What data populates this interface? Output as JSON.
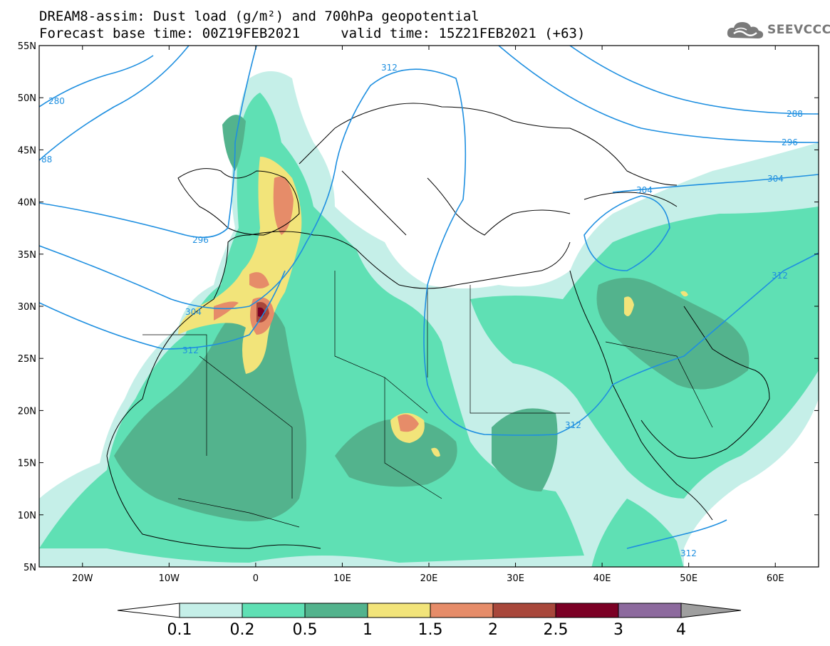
{
  "title": {
    "line1": "DREAM8-assim: Dust load (g/m²) and 700hPa geopotential",
    "line2": "Forecast base time: 00Z19FEB2021     valid time: 15Z21FEB2021 (+63)"
  },
  "brand": {
    "name": "SEEVCCC",
    "icon": "cloud-logo-icon"
  },
  "map": {
    "lon_range": [
      -25,
      65
    ],
    "lat_range": [
      5,
      55
    ],
    "lat_labels": [
      "55N",
      "50N",
      "45N",
      "40N",
      "35N",
      "30N",
      "25N",
      "20N",
      "15N",
      "10N",
      "5N"
    ],
    "lon_labels": [
      "20W",
      "10W",
      "0",
      "10E",
      "20E",
      "30E",
      "40E",
      "50E",
      "60E"
    ],
    "contour_labels": [
      "280",
      "88",
      "312",
      "288",
      "296",
      "304",
      "304",
      "296",
      "304",
      "312",
      "312",
      "312",
      "312"
    ],
    "contour_color": "#1e8fe0"
  },
  "colorbar": {
    "ticks": [
      "0.1",
      "0.2",
      "0.5",
      "1",
      "1.5",
      "2",
      "2.5",
      "3",
      "4"
    ],
    "colors": [
      "#c5efe8",
      "#5fe0b4",
      "#53b38d",
      "#f2e47a",
      "#e68c69",
      "#a8473b",
      "#7b0025",
      "#8d6a9e",
      "#9f9f9f"
    ]
  }
}
